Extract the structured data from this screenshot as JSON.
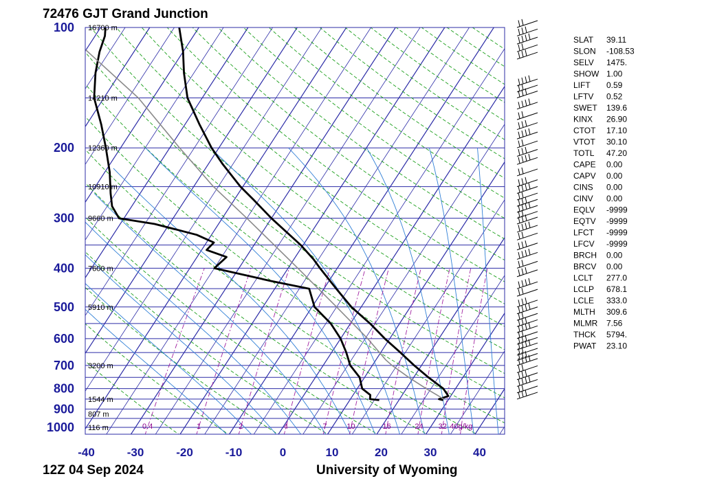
{
  "header": {
    "station": "72476 GJT Grand Junction",
    "time": "12Z 04 Sep 2024",
    "source": "University of Wyoming"
  },
  "colors": {
    "isobar": "#2b2ba6",
    "isotherm": "#2b2ba6",
    "dry_adiabat": "#1a9e1a",
    "moist_adiabat": "#2f7fd6",
    "mixing_ratio": "#a020a0",
    "temperature": "#000000",
    "dewpoint": "#000000",
    "parcel": "#8a8a8a"
  },
  "chart_data": {
    "type": "line",
    "title": "72476 GJT Grand Junction",
    "xlabel": "",
    "ylabel": "",
    "skew": "skew-T log-p",
    "pressure_levels": [
      1000,
      900,
      800,
      700,
      600,
      500,
      400,
      300,
      200,
      100
    ],
    "pressure_axis_labels": [
      "1000",
      "900",
      "800",
      "700",
      "600",
      "500",
      "400",
      "300",
      "200",
      "100"
    ],
    "temperature_ticks": [
      -40,
      -30,
      -20,
      -10,
      0,
      10,
      20,
      30,
      40
    ],
    "xlim": [
      -40,
      45
    ],
    "ylim_hpa": [
      1050,
      100
    ],
    "height_labels": [
      {
        "p": 1000,
        "text": "116 m"
      },
      {
        "p": 925,
        "text": "807 m"
      },
      {
        "p": 850,
        "text": "1544 m"
      },
      {
        "p": 700,
        "text": "3200 m"
      },
      {
        "p": 500,
        "text": "5910 m"
      },
      {
        "p": 400,
        "text": "7600 m"
      },
      {
        "p": 300,
        "text": "9660 m"
      },
      {
        "p": 250,
        "text": "10910 m"
      },
      {
        "p": 200,
        "text": "12360 m"
      },
      {
        "p": 150,
        "text": "14210 m"
      },
      {
        "p": 100,
        "text": "16700 m"
      }
    ],
    "mixing_ratio_labels": [
      "0.4",
      "1",
      "2",
      "4",
      "7",
      "10",
      "16",
      "24",
      "32",
      "40g/kg"
    ],
    "mixing_ratio_values": [
      0.4,
      1,
      2,
      4,
      7,
      10,
      16,
      24,
      32,
      40
    ],
    "series": [
      {
        "name": "",
        "kind": "temperature",
        "points": [
          {
            "p": 855,
            "t": 29.0
          },
          {
            "p": 850,
            "t": 28.0
          },
          {
            "p": 835,
            "t": 29.5
          },
          {
            "p": 800,
            "t": 27.5
          },
          {
            "p": 750,
            "t": 23.0
          },
          {
            "p": 700,
            "t": 18.5
          },
          {
            "p": 650,
            "t": 14.0
          },
          {
            "p": 600,
            "t": 9.0
          },
          {
            "p": 550,
            "t": 4.0
          },
          {
            "p": 500,
            "t": -2.0
          },
          {
            "p": 450,
            "t": -7.5
          },
          {
            "p": 400,
            "t": -13.5
          },
          {
            "p": 380,
            "t": -16.0
          },
          {
            "p": 350,
            "t": -20.5
          },
          {
            "p": 300,
            "t": -30.0
          },
          {
            "p": 270,
            "t": -36.0
          },
          {
            "p": 250,
            "t": -40.5
          },
          {
            "p": 220,
            "t": -47.0
          },
          {
            "p": 200,
            "t": -51.5
          },
          {
            "p": 175,
            "t": -57.0
          },
          {
            "p": 150,
            "t": -63.0
          },
          {
            "p": 130,
            "t": -67.0
          },
          {
            "p": 115,
            "t": -70.0
          },
          {
            "p": 100,
            "t": -74.0
          }
        ]
      },
      {
        "name": "",
        "kind": "dewpoint",
        "points": [
          {
            "p": 855,
            "t": 16.0
          },
          {
            "p": 850,
            "t": 14.0
          },
          {
            "p": 830,
            "t": 13.5
          },
          {
            "p": 800,
            "t": 11.0
          },
          {
            "p": 750,
            "t": 9.0
          },
          {
            "p": 700,
            "t": 5.5
          },
          {
            "p": 650,
            "t": 3.0
          },
          {
            "p": 600,
            "t": 0.0
          },
          {
            "p": 550,
            "t": -4.0
          },
          {
            "p": 500,
            "t": -9.5
          },
          {
            "p": 450,
            "t": -13.0
          },
          {
            "p": 430,
            "t": -22.0
          },
          {
            "p": 400,
            "t": -35.0
          },
          {
            "p": 375,
            "t": -34.0
          },
          {
            "p": 360,
            "t": -39.0
          },
          {
            "p": 345,
            "t": -38.5
          },
          {
            "p": 330,
            "t": -43.0
          },
          {
            "p": 310,
            "t": -53.0
          },
          {
            "p": 300,
            "t": -61.0
          },
          {
            "p": 280,
            "t": -64.0
          },
          {
            "p": 260,
            "t": -66.0
          },
          {
            "p": 230,
            "t": -69.0
          },
          {
            "p": 200,
            "t": -73.0
          },
          {
            "p": 175,
            "t": -77.0
          },
          {
            "p": 150,
            "t": -82.0
          },
          {
            "p": 130,
            "t": -85.0
          },
          {
            "p": 115,
            "t": -87.0
          },
          {
            "p": 105,
            "t": -88.0
          },
          {
            "p": 100,
            "t": -89.0
          }
        ]
      },
      {
        "name": "",
        "kind": "parcel",
        "points": [
          {
            "p": 850,
            "t": 29.0
          },
          {
            "p": 800,
            "t": 24.0
          },
          {
            "p": 750,
            "t": 19.0
          },
          {
            "p": 700,
            "t": 14.0
          },
          {
            "p": 678,
            "t": 12.0
          },
          {
            "p": 600,
            "t": 5.5
          },
          {
            "p": 500,
            "t": -5.0
          },
          {
            "p": 400,
            "t": -18.0
          },
          {
            "p": 300,
            "t": -35.0
          },
          {
            "p": 250,
            "t": -46.0
          },
          {
            "p": 200,
            "t": -58.0
          },
          {
            "p": 150,
            "t": -73.0
          },
          {
            "p": 100,
            "t": -98.0
          }
        ]
      }
    ],
    "wind_profile_levels_hpa": [
      100,
      105,
      110,
      115,
      120,
      140,
      145,
      150,
      160,
      170,
      180,
      190,
      200,
      210,
      220,
      235,
      250,
      260,
      270,
      280,
      290,
      300,
      310,
      325,
      340,
      360,
      380,
      400,
      420,
      450,
      470,
      500,
      520,
      540,
      560,
      580,
      600,
      620,
      640,
      660,
      680,
      700,
      730,
      760,
      790,
      820,
      850
    ]
  },
  "indices": [
    {
      "key": "SLAT",
      "value": "39.11"
    },
    {
      "key": "SLON",
      "value": "-108.53"
    },
    {
      "key": "SELV",
      "value": "1475."
    },
    {
      "key": "SHOW",
      "value": "1.00"
    },
    {
      "key": "LIFT",
      "value": "0.59"
    },
    {
      "key": "LFTV",
      "value": "0.52"
    },
    {
      "key": "SWET",
      "value": "139.6"
    },
    {
      "key": "KINX",
      "value": "26.90"
    },
    {
      "key": "CTOT",
      "value": "17.10"
    },
    {
      "key": "VTOT",
      "value": "30.10"
    },
    {
      "key": "TOTL",
      "value": "47.20"
    },
    {
      "key": "CAPE",
      "value": "0.00"
    },
    {
      "key": "CAPV",
      "value": "0.00"
    },
    {
      "key": "CINS",
      "value": "0.00"
    },
    {
      "key": "CINV",
      "value": "0.00"
    },
    {
      "key": "EQLV",
      "value": "-9999"
    },
    {
      "key": "EQTV",
      "value": "-9999"
    },
    {
      "key": "LFCT",
      "value": "-9999"
    },
    {
      "key": "LFCV",
      "value": "-9999"
    },
    {
      "key": "BRCH",
      "value": "0.00"
    },
    {
      "key": "BRCV",
      "value": "0.00"
    },
    {
      "key": "LCLT",
      "value": "277.0"
    },
    {
      "key": "LCLP",
      "value": "678.1"
    },
    {
      "key": "LCLE",
      "value": "333.0"
    },
    {
      "key": "MLTH",
      "value": "309.6"
    },
    {
      "key": "MLMR",
      "value": "7.56"
    },
    {
      "key": "THCK",
      "value": "5794."
    },
    {
      "key": "PWAT",
      "value": "23.10"
    }
  ]
}
